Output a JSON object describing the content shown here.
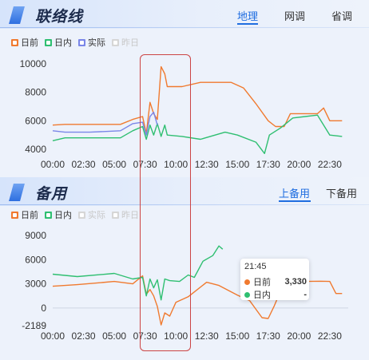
{
  "top": {
    "title": "联络线",
    "tabs": [
      {
        "label": "地理",
        "active": true
      },
      {
        "label": "网调",
        "active": false
      },
      {
        "label": "省调",
        "active": false
      }
    ],
    "legend": [
      {
        "label": "日前",
        "color": "#f07a2f",
        "on": true
      },
      {
        "label": "日内",
        "color": "#2fbf71",
        "on": true
      },
      {
        "label": "实际",
        "color": "#7a86e8",
        "on": true
      },
      {
        "label": "昨日",
        "color": "#cfcfcf",
        "on": false
      }
    ]
  },
  "bottom": {
    "title": "备用",
    "tabs": [
      {
        "label": "上备用",
        "active": true
      },
      {
        "label": "下备用",
        "active": false
      }
    ],
    "legend": [
      {
        "label": "日前",
        "color": "#f07a2f",
        "on": true
      },
      {
        "label": "日内",
        "color": "#2fbf71",
        "on": true
      },
      {
        "label": "实际",
        "color": "#cfcfcf",
        "on": false
      },
      {
        "label": "昨日",
        "color": "#cfcfcf",
        "on": false
      }
    ],
    "tooltip": {
      "time": "21:45",
      "rows": [
        {
          "label": "日前",
          "value": "3,330",
          "color": "#f07a2f"
        },
        {
          "label": "日内",
          "value": "-",
          "color": "#2fbf71"
        }
      ]
    }
  },
  "chart_data": [
    {
      "type": "line",
      "x_ticks": [
        "00:00",
        "02:30",
        "05:00",
        "07:30",
        "10:00",
        "12:30",
        "15:00",
        "17:30",
        "20:00",
        "22:30"
      ],
      "ylim": [
        4000,
        10000
      ],
      "y_ticks": [
        "10000",
        "8000",
        "6000",
        "4000"
      ],
      "series": [
        {
          "name": "日前",
          "color": "#f07a2f",
          "points": [
            [
              0,
              5700
            ],
            [
              1,
              5750
            ],
            [
              3,
              5750
            ],
            [
              5.5,
              5750
            ],
            [
              6.5,
              6100
            ],
            [
              7.3,
              6300
            ],
            [
              7.6,
              5100
            ],
            [
              7.9,
              7300
            ],
            [
              8.2,
              6500
            ],
            [
              8.5,
              6100
            ],
            [
              8.8,
              9800
            ],
            [
              9.1,
              9300
            ],
            [
              9.3,
              8400
            ],
            [
              10.5,
              8400
            ],
            [
              12,
              8700
            ],
            [
              14.5,
              8700
            ],
            [
              15.5,
              8300
            ],
            [
              16.5,
              7200
            ],
            [
              17.5,
              6000
            ],
            [
              18.1,
              5600
            ],
            [
              18.8,
              5600
            ],
            [
              19.3,
              6500
            ],
            [
              21.5,
              6500
            ],
            [
              22,
              6900
            ],
            [
              22.5,
              6000
            ],
            [
              23.5,
              6000
            ]
          ]
        },
        {
          "name": "日内",
          "color": "#2fbf71",
          "points": [
            [
              0,
              4600
            ],
            [
              1,
              4800
            ],
            [
              3,
              4800
            ],
            [
              5.5,
              4800
            ],
            [
              6.5,
              5300
            ],
            [
              7.3,
              5600
            ],
            [
              7.6,
              4700
            ],
            [
              7.9,
              5700
            ],
            [
              8.2,
              5000
            ],
            [
              8.5,
              5800
            ],
            [
              8.8,
              4900
            ],
            [
              9.1,
              5700
            ],
            [
              9.3,
              5000
            ],
            [
              10.5,
              4900
            ],
            [
              12,
              4700
            ],
            [
              14,
              5200
            ],
            [
              15,
              5000
            ],
            [
              16.5,
              4500
            ],
            [
              17.2,
              3700
            ],
            [
              17.6,
              5000
            ],
            [
              18.5,
              5500
            ],
            [
              19.5,
              6200
            ],
            [
              21.5,
              6400
            ],
            [
              22.5,
              5000
            ],
            [
              23.5,
              4900
            ]
          ]
        },
        {
          "name": "实际",
          "color": "#7a86e8",
          "points": [
            [
              0,
              5300
            ],
            [
              1,
              5200
            ],
            [
              3,
              5200
            ],
            [
              5.5,
              5300
            ],
            [
              6.5,
              5800
            ],
            [
              7.3,
              5900
            ],
            [
              7.6,
              5000
            ],
            [
              7.9,
              6300
            ],
            [
              8.2,
              6600
            ],
            [
              8.5,
              5700
            ]
          ]
        }
      ]
    },
    {
      "type": "line",
      "x_ticks": [
        "00:00",
        "02:30",
        "05:00",
        "07:30",
        "10:00",
        "12:30",
        "15:00",
        "17:30",
        "20:00",
        "22:30"
      ],
      "ylim": [
        -2189,
        9000
      ],
      "y_ticks": [
        "9000",
        "6000",
        "3000",
        "0",
        "-2189"
      ],
      "series": [
        {
          "name": "日前",
          "color": "#f07a2f",
          "points": [
            [
              0,
              2700
            ],
            [
              2,
              2900
            ],
            [
              5,
              3300
            ],
            [
              6.5,
              3000
            ],
            [
              7.3,
              4000
            ],
            [
              7.6,
              1700
            ],
            [
              7.9,
              2300
            ],
            [
              8.2,
              1500
            ],
            [
              8.5,
              200
            ],
            [
              8.8,
              -2100
            ],
            [
              9.1,
              -600
            ],
            [
              9.5,
              -1000
            ],
            [
              10,
              700
            ],
            [
              11,
              1400
            ],
            [
              12.5,
              3200
            ],
            [
              13.5,
              2800
            ],
            [
              15,
              1600
            ],
            [
              16,
              900
            ],
            [
              17,
              -1200
            ],
            [
              17.5,
              -1300
            ],
            [
              18,
              300
            ],
            [
              18.5,
              2100
            ],
            [
              19.5,
              3100
            ],
            [
              20.5,
              3300
            ],
            [
              21.75,
              3330
            ],
            [
              22.5,
              3300
            ],
            [
              23,
              1800
            ],
            [
              23.5,
              1800
            ]
          ]
        },
        {
          "name": "日内",
          "color": "#2fbf71",
          "points": [
            [
              0,
              4200
            ],
            [
              2,
              3900
            ],
            [
              5,
              4300
            ],
            [
              6.5,
              3600
            ],
            [
              7.3,
              3800
            ],
            [
              7.6,
              1500
            ],
            [
              7.9,
              3600
            ],
            [
              8.2,
              2500
            ],
            [
              8.5,
              3500
            ],
            [
              8.8,
              1000
            ],
            [
              9.1,
              3600
            ],
            [
              9.5,
              3400
            ],
            [
              10.3,
              3300
            ],
            [
              11,
              4100
            ],
            [
              11.5,
              3800
            ],
            [
              12.2,
              5800
            ],
            [
              13,
              6500
            ],
            [
              13.5,
              7700
            ],
            [
              13.8,
              7300
            ]
          ]
        }
      ]
    }
  ]
}
